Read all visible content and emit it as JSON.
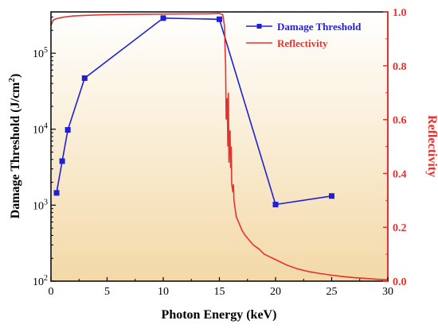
{
  "chart_data": {
    "type": "line",
    "x_label": "Photon Energy (keV)",
    "y_label_left_main": "Damage Threshold (J/cm",
    "y_label_left_sup": "2",
    "y_label_left_end": ")",
    "y_label_right": "Reflectivity",
    "x_range": [
      0,
      30
    ],
    "x_ticks": [
      0,
      5,
      10,
      15,
      20,
      25,
      30
    ],
    "y_left_scale": "log",
    "y_left_range": [
      100,
      350000
    ],
    "y_left_ticks": [
      {
        "value": 100,
        "base": "10",
        "exp": "2"
      },
      {
        "value": 1000,
        "base": "10",
        "exp": "3"
      },
      {
        "value": 10000,
        "base": "10",
        "exp": "4"
      },
      {
        "value": 100000,
        "base": "10",
        "exp": "5"
      }
    ],
    "y_right_range": [
      0.0,
      1.0
    ],
    "y_right_ticks": [
      "0.0",
      "0.2",
      "0.4",
      "0.6",
      "0.8",
      "1.0"
    ],
    "background_gradient": {
      "top": "#ffffff",
      "bottom": "#f3d9a7"
    },
    "legend_position": "top-right",
    "series": [
      {
        "name": "Damage Threshold",
        "axis": "left",
        "color": "#1f1fd6",
        "marker": "square",
        "x": [
          0.5,
          1.0,
          1.5,
          3.0,
          10.0,
          15.0,
          20.0,
          25.0
        ],
        "y": [
          1450,
          3800,
          9800,
          47000,
          290000,
          280000,
          1020,
          1320
        ]
      },
      {
        "name": "Reflectivity",
        "axis": "right",
        "color": "#e8312f",
        "marker": "none",
        "x": [
          0,
          0.2,
          0.5,
          1.0,
          2.0,
          3.0,
          5.0,
          10.0,
          14.0,
          15.0,
          15.3,
          15.45,
          15.55,
          15.6,
          15.7,
          15.75,
          15.8,
          15.85,
          15.9,
          15.95,
          16.0,
          16.05,
          16.1,
          16.2,
          16.25,
          16.3,
          16.4,
          16.5,
          16.7,
          17.0,
          17.3,
          17.6,
          18.0,
          18.5,
          19.0,
          20.0,
          21.0,
          22.0,
          23.0,
          24.0,
          25.0,
          26.0,
          27.0,
          28.0,
          29.0,
          30.0
        ],
        "y": [
          0.95,
          0.97,
          0.975,
          0.98,
          0.985,
          0.987,
          0.99,
          0.992,
          0.993,
          0.994,
          0.99,
          0.95,
          0.8,
          0.6,
          0.68,
          0.5,
          0.7,
          0.44,
          0.52,
          0.56,
          0.42,
          0.5,
          0.36,
          0.33,
          0.36,
          0.3,
          0.27,
          0.24,
          0.22,
          0.19,
          0.17,
          0.155,
          0.135,
          0.12,
          0.1,
          0.08,
          0.06,
          0.045,
          0.035,
          0.028,
          0.022,
          0.017,
          0.013,
          0.01,
          0.007,
          0.005
        ]
      }
    ]
  }
}
